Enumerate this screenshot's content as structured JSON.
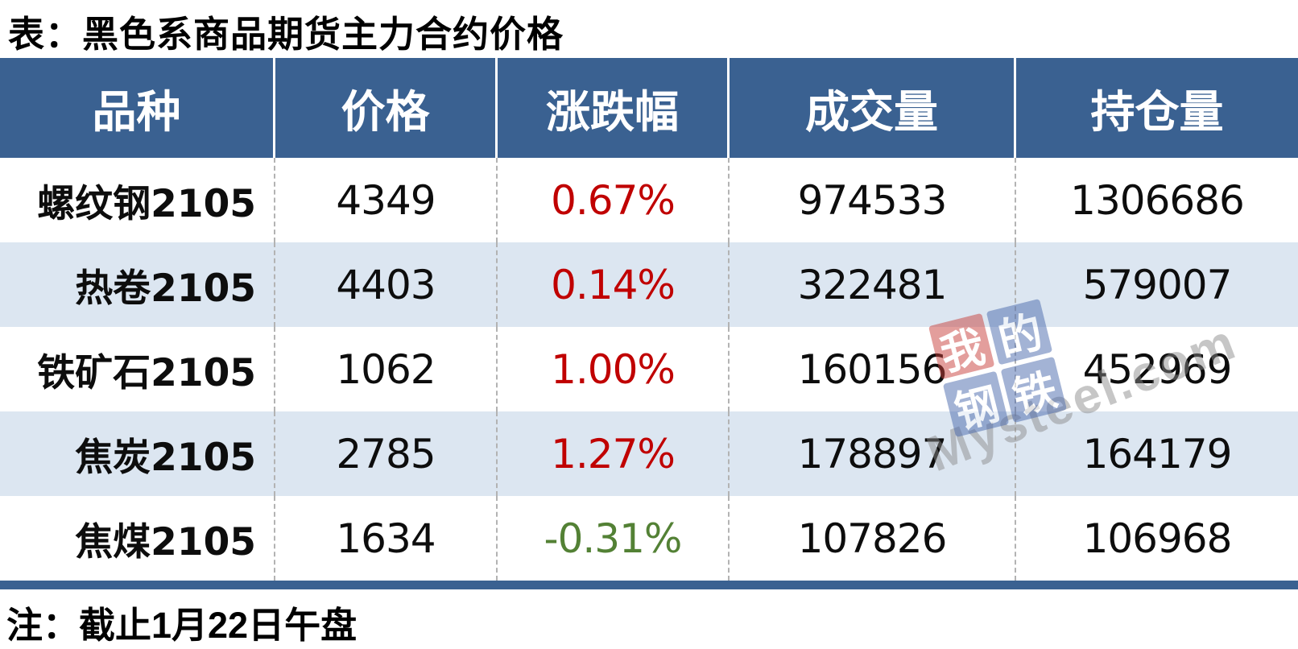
{
  "title": "表：黑色系商品期货主力合约价格",
  "note": "注：截止1月22日午盘",
  "table": {
    "headers": [
      "品种",
      "价格",
      "涨跌幅",
      "成交量",
      "持仓量"
    ],
    "rows": [
      {
        "variety": "螺纹钢2105",
        "price": "4349",
        "change": "0.67%",
        "volume": "974533",
        "open_interest": "1306686",
        "direction": "up"
      },
      {
        "variety": "热卷2105",
        "price": "4403",
        "change": "0.14%",
        "volume": "322481",
        "open_interest": "579007",
        "direction": "up"
      },
      {
        "variety": "铁矿石2105",
        "price": "1062",
        "change": "1.00%",
        "volume": "160156",
        "open_interest": "452969",
        "direction": "up"
      },
      {
        "variety": "焦炭2105",
        "price": "2785",
        "change": "1.27%",
        "volume": "178897",
        "open_interest": "164179",
        "direction": "up"
      },
      {
        "variety": "焦煤2105",
        "price": "1634",
        "change": "-0.31%",
        "volume": "107826",
        "open_interest": "106968",
        "direction": "down"
      }
    ]
  },
  "watermark": {
    "char_1": "我",
    "char_2": "的",
    "char_3": "钢",
    "char_4": "铁",
    "domain": "Mysteel.com"
  },
  "colors": {
    "header_bg": "#3a6191",
    "row_alt_bg": "#dce6f1",
    "up_red": "#c00000",
    "down_green": "#538135",
    "bottom_border": "#3a6191",
    "watermark_red": "#c8403c",
    "watermark_blue": "#4a69ad"
  },
  "chart_data": {
    "type": "table",
    "title": "表：黑色系商品期货主力合约价格",
    "columns": [
      "品种",
      "价格",
      "涨跌幅",
      "成交量",
      "持仓量"
    ],
    "rows": [
      [
        "螺纹钢2105",
        4349,
        "0.67%",
        974533,
        1306686
      ],
      [
        "热卷2105",
        4403,
        "0.14%",
        322481,
        579007
      ],
      [
        "铁矿石2105",
        1062,
        "1.00%",
        160156,
        452969
      ],
      [
        "焦炭2105",
        2785,
        "1.27%",
        178897,
        164179
      ],
      [
        "焦煤2105",
        1634,
        "-0.31%",
        107826,
        106968
      ]
    ],
    "note": "注：截止1月22日午盘",
    "style_notes": "positive changes red, negative changes green, alternating row shading"
  }
}
